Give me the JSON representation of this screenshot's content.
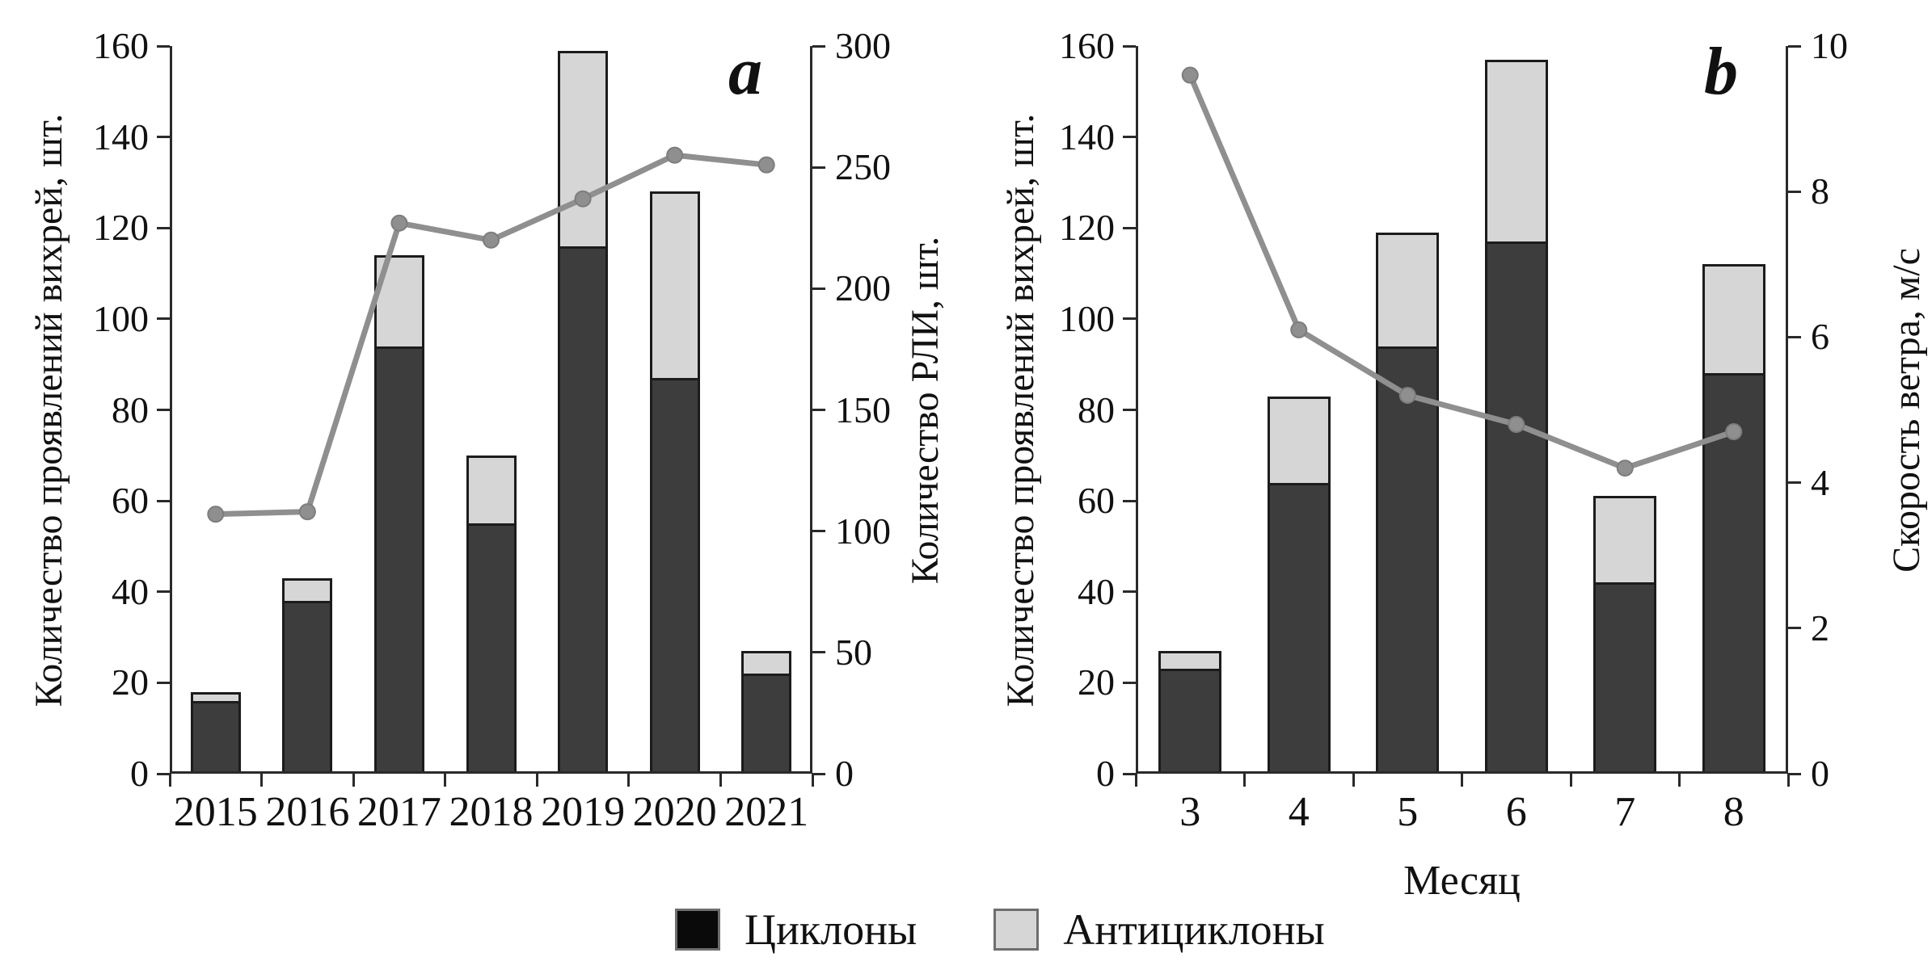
{
  "figure_title": "",
  "colors": {
    "bar_cyclone": "#3d3d3d",
    "bar_anticyclone": "#d6d6d6",
    "bar_border": "#1c1c1c",
    "line": "#8f8f8f",
    "axis": "#2a2a2a",
    "legend_cyclone_swatch": "#0a0a0a",
    "legend_anticyclone_swatch": "#d6d6d6",
    "text": "#111111"
  },
  "legend": [
    {
      "label": "Циклоны",
      "color": "#0a0a0a"
    },
    {
      "label": "Антициклоны",
      "color": "#d6d6d6"
    }
  ],
  "chart_data": [
    {
      "type": "bar+line",
      "panel_label": "a",
      "title": "",
      "categories": [
        "2015",
        "2016",
        "2017",
        "2018",
        "2019",
        "2020",
        "2021"
      ],
      "series": [
        {
          "name": "Циклоны",
          "type": "bar",
          "stacked": true,
          "axis": "left",
          "values": [
            16,
            38,
            94,
            55,
            116,
            87,
            22
          ]
        },
        {
          "name": "Антициклоны",
          "type": "bar",
          "stacked": true,
          "axis": "left",
          "values": [
            2,
            5,
            20,
            15,
            43,
            41,
            5
          ]
        },
        {
          "name": "Количество РЛИ",
          "type": "line",
          "axis": "right",
          "values": [
            107,
            108,
            227,
            220,
            237,
            255,
            251
          ]
        }
      ],
      "stack_totals": [
        18,
        43,
        114,
        70,
        159,
        128,
        27
      ],
      "xlabel": "",
      "ylabel_left": "Количество проявлений вихрей, шт.",
      "ylabel_right": "Количество РЛИ, шт.",
      "ylim_left": [
        0,
        160
      ],
      "ytick_left": 20,
      "ylim_right": [
        0,
        300
      ],
      "ytick_right": 50,
      "grid": false,
      "legend_position": "bottom"
    },
    {
      "type": "bar+line",
      "panel_label": "b",
      "title": "",
      "categories": [
        "3",
        "4",
        "5",
        "6",
        "7",
        "8"
      ],
      "series": [
        {
          "name": "Циклоны",
          "type": "bar",
          "stacked": true,
          "axis": "left",
          "values": [
            23,
            64,
            94,
            117,
            42,
            88
          ]
        },
        {
          "name": "Антициклоны",
          "type": "bar",
          "stacked": true,
          "axis": "left",
          "values": [
            4,
            19,
            25,
            40,
            19,
            24
          ]
        },
        {
          "name": "Скорость ветра",
          "type": "line",
          "axis": "right",
          "values": [
            9.6,
            6.1,
            5.2,
            4.8,
            4.2,
            4.7
          ]
        }
      ],
      "stack_totals": [
        27,
        83,
        119,
        157,
        61,
        112
      ],
      "xlabel": "Месяц",
      "ylabel_left": "Количество проявлений вихрей, шт.",
      "ylabel_right": "Скорость ветра, м/с",
      "ylim_left": [
        0,
        160
      ],
      "ytick_left": 20,
      "ylim_right": [
        0,
        10
      ],
      "ytick_right": 2,
      "grid": false,
      "legend_position": "bottom"
    }
  ]
}
